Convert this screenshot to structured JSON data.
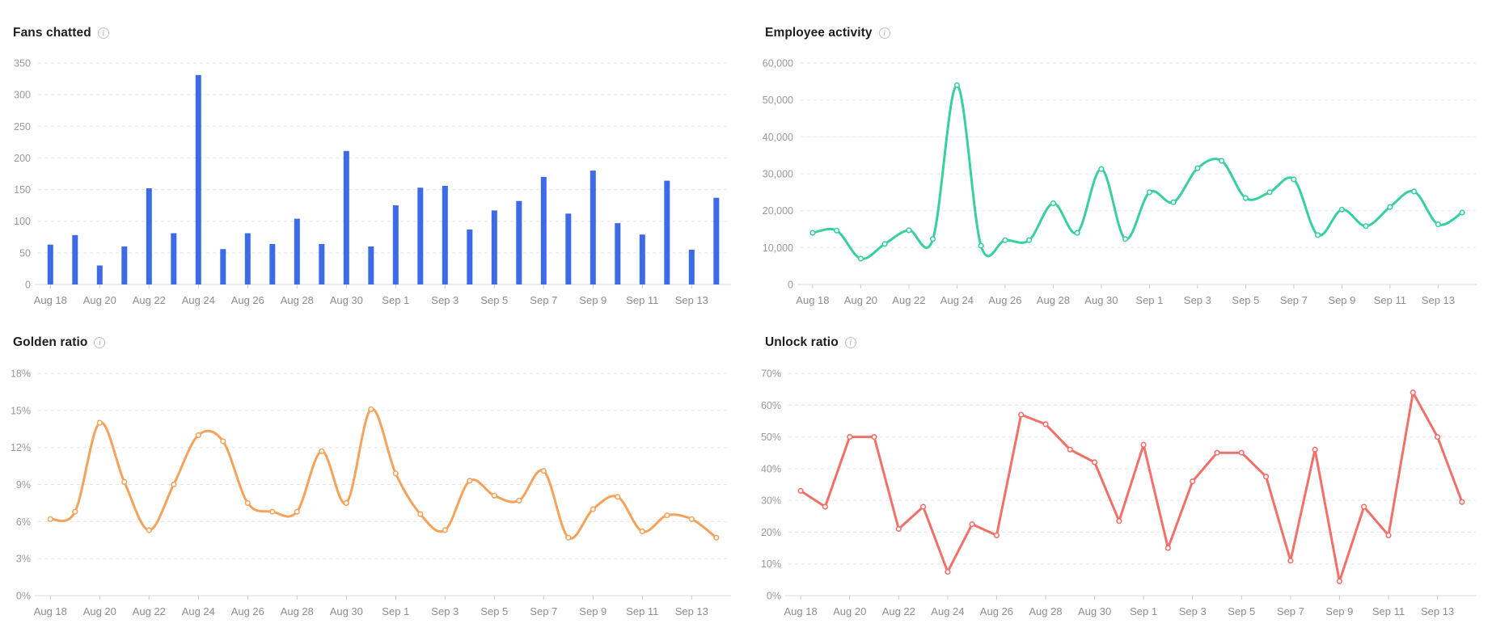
{
  "ui": {
    "info_icon_glyph": "i"
  },
  "chart_data": [
    {
      "type": "bar",
      "title": "Fans chatted",
      "color": "#3d6ae5",
      "smooth": false,
      "grid": "horizontal-dashed",
      "legend_position": "none",
      "categories": [
        "Aug 18",
        "Aug 19",
        "Aug 20",
        "Aug 21",
        "Aug 22",
        "Aug 23",
        "Aug 24",
        "Aug 25",
        "Aug 26",
        "Aug 27",
        "Aug 28",
        "Aug 29",
        "Aug 30",
        "Aug 31",
        "Sep 1",
        "Sep 2",
        "Sep 3",
        "Sep 4",
        "Sep 5",
        "Sep 6",
        "Sep 7",
        "Sep 8",
        "Sep 9",
        "Sep 10",
        "Sep 11",
        "Sep 12",
        "Sep 13",
        "Sep 14"
      ],
      "values": [
        63,
        78,
        30,
        60,
        152,
        81,
        331,
        56,
        81,
        64,
        104,
        64,
        211,
        60,
        125,
        153,
        156,
        87,
        117,
        132,
        170,
        112,
        180,
        97,
        79,
        164,
        55,
        137
      ],
      "x_axis": {
        "visible_tick_labels": [
          "Aug 18",
          "Aug 20",
          "Aug 22",
          "Aug 24",
          "Aug 26",
          "Aug 28",
          "Aug 30",
          "Sep 1",
          "Sep 3",
          "Sep 5",
          "Sep 7",
          "Sep 9",
          "Sep 11",
          "Sep 13"
        ],
        "label_interval": 2
      },
      "y_axis": {
        "min": 0,
        "max": 350,
        "step": 50,
        "tick_labels": [
          "0",
          "50",
          "100",
          "150",
          "200",
          "250",
          "300",
          "350"
        ]
      }
    },
    {
      "type": "line",
      "title": "Employee activity",
      "color": "#38cfa2",
      "smooth": true,
      "grid": "horizontal-dashed",
      "legend_position": "none",
      "categories": [
        "Aug 18",
        "Aug 19",
        "Aug 20",
        "Aug 21",
        "Aug 22",
        "Aug 23",
        "Aug 24",
        "Aug 25",
        "Aug 26",
        "Aug 27",
        "Aug 28",
        "Aug 29",
        "Aug 30",
        "Aug 31",
        "Sep 1",
        "Sep 2",
        "Sep 3",
        "Sep 4",
        "Sep 5",
        "Sep 6",
        "Sep 7",
        "Sep 8",
        "Sep 9",
        "Sep 10",
        "Sep 11",
        "Sep 12",
        "Sep 13",
        "Sep 14"
      ],
      "values": [
        14000,
        14600,
        7000,
        11000,
        14700,
        12300,
        54000,
        10500,
        12000,
        12000,
        22000,
        14000,
        31300,
        12300,
        25000,
        22300,
        31500,
        33500,
        23400,
        25000,
        28500,
        13400,
        20300,
        15800,
        21000,
        25200,
        16300,
        19500
      ],
      "x_axis": {
        "visible_tick_labels": [
          "Aug 18",
          "Aug 20",
          "Aug 22",
          "Aug 24",
          "Aug 26",
          "Aug 28",
          "Aug 30",
          "Sep 1",
          "Sep 3",
          "Sep 5",
          "Sep 7",
          "Sep 9",
          "Sep 11",
          "Sep 13"
        ],
        "label_interval": 2
      },
      "y_axis": {
        "min": 0,
        "max": 60000,
        "step": 10000,
        "tick_labels": [
          "0",
          "10,000",
          "20,000",
          "30,000",
          "40,000",
          "50,000",
          "60,000"
        ]
      }
    },
    {
      "type": "line",
      "title": "Golden ratio",
      "color": "#f5a35c",
      "smooth": true,
      "grid": "horizontal-dashed",
      "legend_position": "none",
      "categories": [
        "Aug 18",
        "Aug 19",
        "Aug 20",
        "Aug 21",
        "Aug 22",
        "Aug 23",
        "Aug 24",
        "Aug 25",
        "Aug 26",
        "Aug 27",
        "Aug 28",
        "Aug 29",
        "Aug 30",
        "Aug 31",
        "Sep 1",
        "Sep 2",
        "Sep 3",
        "Sep 4",
        "Sep 5",
        "Sep 6",
        "Sep 7",
        "Sep 8",
        "Sep 9",
        "Sep 10",
        "Sep 11",
        "Sep 12",
        "Sep 13",
        "Sep 14"
      ],
      "values": [
        6.2,
        6.8,
        14,
        9.2,
        5.3,
        9,
        13,
        12.5,
        7.5,
        6.8,
        6.8,
        11.7,
        7.5,
        15.1,
        9.9,
        6.6,
        5.3,
        9.3,
        8.1,
        7.7,
        10.1,
        4.7,
        7,
        8,
        5.2,
        6.5,
        6.2,
        4.7
      ],
      "x_axis": {
        "visible_tick_labels": [
          "Aug 18",
          "Aug 20",
          "Aug 22",
          "Aug 24",
          "Aug 26",
          "Aug 28",
          "Aug 30",
          "Sep 1",
          "Sep 3",
          "Sep 5",
          "Sep 7",
          "Sep 9",
          "Sep 11",
          "Sep 13"
        ],
        "label_interval": 2
      },
      "y_axis": {
        "min": 0,
        "max": 18,
        "step": 3,
        "tick_labels": [
          "0%",
          "3%",
          "6%",
          "9%",
          "12%",
          "15%",
          "18%"
        ]
      }
    },
    {
      "type": "line",
      "title": "Unlock ratio",
      "color": "#f1716a",
      "smooth": false,
      "grid": "horizontal-dashed",
      "legend_position": "none",
      "categories": [
        "Aug 18",
        "Aug 19",
        "Aug 20",
        "Aug 21",
        "Aug 22",
        "Aug 23",
        "Aug 24",
        "Aug 25",
        "Aug 26",
        "Aug 27",
        "Aug 28",
        "Aug 29",
        "Aug 30",
        "Aug 31",
        "Sep 1",
        "Sep 2",
        "Sep 3",
        "Sep 4",
        "Sep 5",
        "Sep 6",
        "Sep 7",
        "Sep 8",
        "Sep 9",
        "Sep 10",
        "Sep 11",
        "Sep 12",
        "Sep 13",
        "Sep 14"
      ],
      "values": [
        33,
        28,
        50,
        50,
        21,
        28,
        7.5,
        22.5,
        19,
        57,
        54,
        46,
        42,
        23.5,
        47.5,
        15,
        36,
        45,
        45,
        37.5,
        11,
        46,
        4.5,
        28,
        19,
        64,
        50,
        29.5
      ],
      "x_axis": {
        "visible_tick_labels": [
          "Aug 18",
          "Aug 20",
          "Aug 22",
          "Aug 24",
          "Aug 26",
          "Aug 28",
          "Aug 30",
          "Sep 1",
          "Sep 3",
          "Sep 5",
          "Sep 7",
          "Sep 9",
          "Sep 11",
          "Sep 13"
        ],
        "label_interval": 2
      },
      "y_axis": {
        "min": 0,
        "max": 70,
        "step": 10,
        "tick_labels": [
          "0%",
          "10%",
          "20%",
          "30%",
          "40%",
          "50%",
          "60%",
          "70%"
        ]
      }
    }
  ]
}
